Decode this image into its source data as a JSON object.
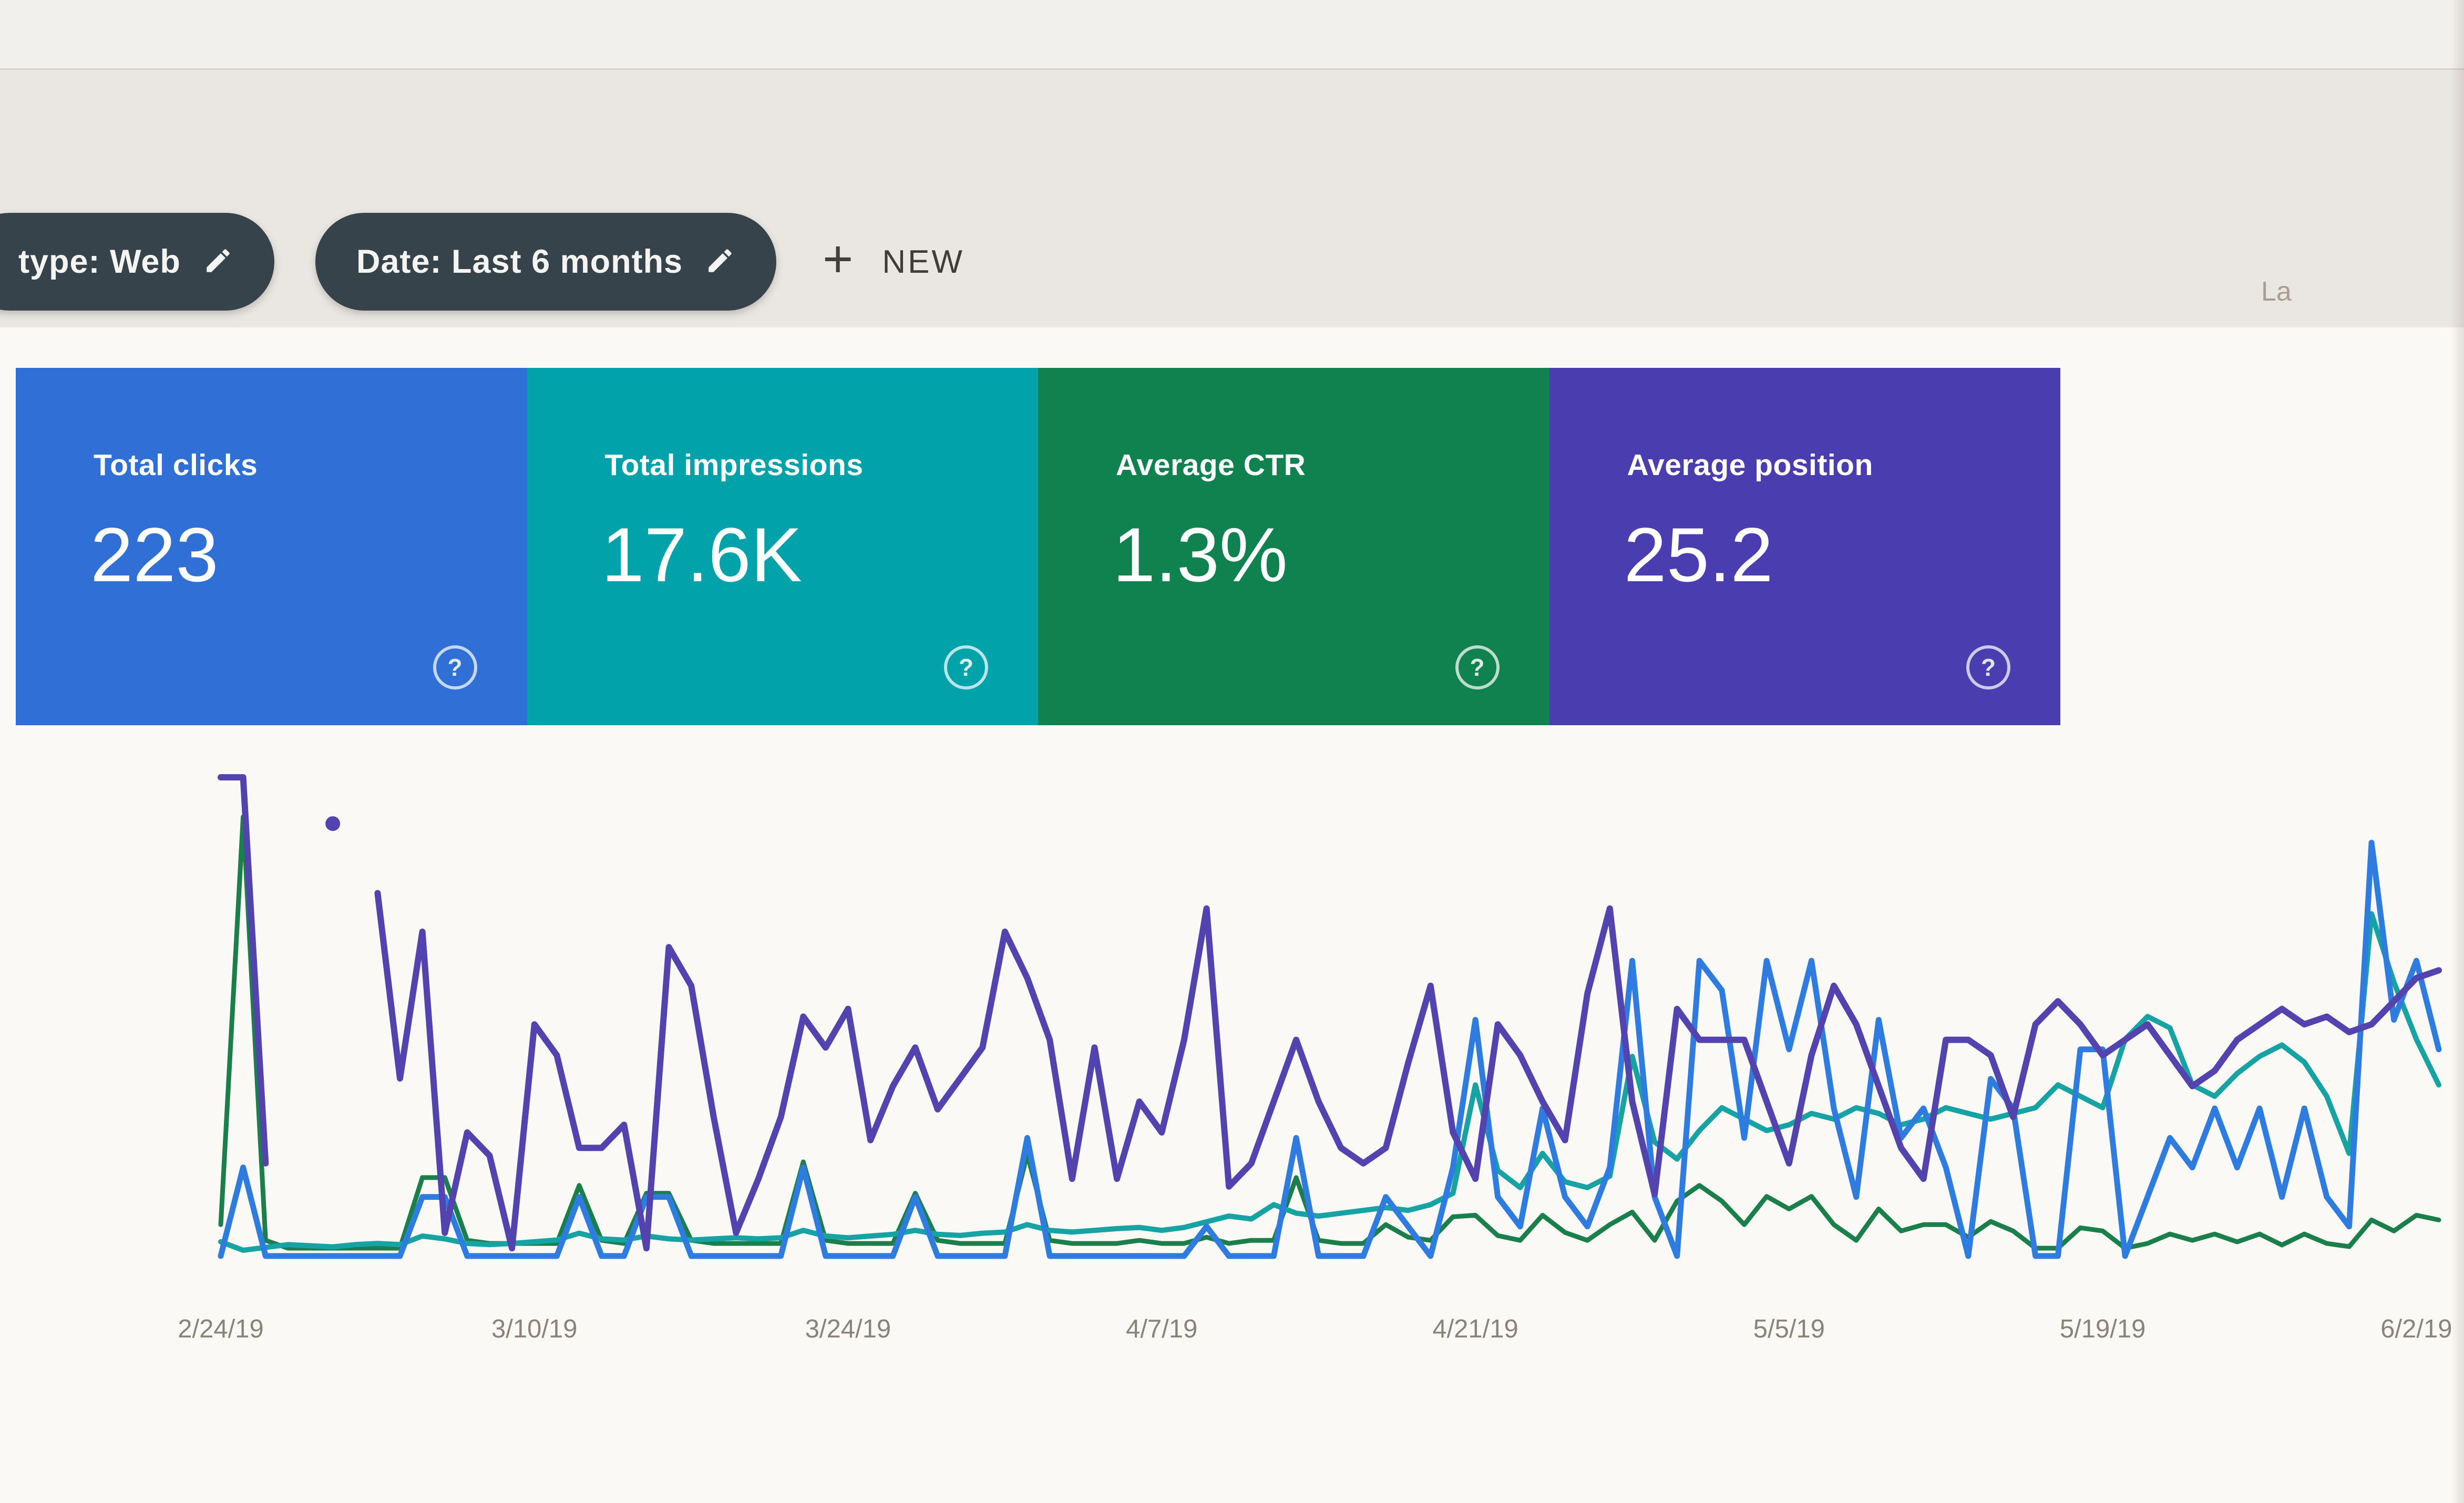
{
  "toolbar": {
    "chips": [
      {
        "label": "type: Web"
      },
      {
        "label": "Date: Last 6 months"
      }
    ],
    "new_button": {
      "plus": "+",
      "label": "NEW"
    },
    "top_right_truncated": "La"
  },
  "summary_cards": [
    {
      "id": "clicks",
      "label": "Total clicks",
      "value": "223",
      "color": "#2f6fd6",
      "help_icon": "?"
    },
    {
      "id": "impressions",
      "label": "Total impressions",
      "value": "17.6K",
      "color": "#01a2aa",
      "help_icon": "?"
    },
    {
      "id": "ctr",
      "label": "Average CTR",
      "value": "1.3%",
      "color": "#10824f",
      "help_icon": "?"
    },
    {
      "id": "position",
      "label": "Average position",
      "value": "25.2",
      "color": "#4a3db0",
      "help_icon": "?"
    }
  ],
  "chart_data": {
    "type": "line",
    "title": "",
    "xlabel": "",
    "ylabel": "",
    "grid": false,
    "y_axis_visible": false,
    "legend": "summary cards act as legend",
    "num_points": 100,
    "x_start_date": "2/24/19",
    "x_tick_labels": [
      "2/24/19",
      "3/10/19",
      "3/24/19",
      "4/7/19",
      "4/21/19",
      "5/5/19",
      "5/19/19",
      "6/2/19"
    ],
    "tick_indices": [
      0,
      14,
      28,
      42,
      56,
      70,
      84,
      98
    ],
    "series": [
      {
        "id": "clicks",
        "name": "Clicks",
        "unit": "clicks/day",
        "color": "#2e7ce0",
        "plot_max": 17,
        "values": [
          0,
          3,
          0,
          0,
          0,
          0,
          0,
          0,
          0,
          2,
          2,
          0,
          0,
          0,
          0,
          0,
          2,
          0,
          0,
          2,
          2,
          0,
          0,
          0,
          0,
          0,
          3,
          0,
          0,
          0,
          0,
          2,
          0,
          0,
          0,
          0,
          4,
          0,
          0,
          0,
          0,
          0,
          0,
          0,
          1,
          0,
          0,
          0,
          4,
          0,
          0,
          0,
          2,
          1,
          0,
          3,
          8,
          2,
          1,
          5,
          2,
          1,
          3,
          10,
          2,
          0,
          10,
          9,
          4,
          10,
          7,
          10,
          5,
          2,
          8,
          4,
          5,
          3,
          0,
          6,
          5,
          0,
          0,
          7,
          7,
          0,
          2,
          4,
          3,
          5,
          3,
          5,
          2,
          5,
          2,
          1,
          14,
          8,
          10,
          7
        ]
      },
      {
        "id": "impressions",
        "name": "Impressions",
        "unit": "impressions/day",
        "color": "#17a3a3",
        "plot_max": 880,
        "values": [
          25,
          10,
          15,
          20,
          18,
          16,
          20,
          22,
          20,
          35,
          30,
          22,
          20,
          22,
          25,
          28,
          40,
          30,
          28,
          35,
          30,
          28,
          30,
          32,
          30,
          32,
          45,
          35,
          32,
          35,
          38,
          45,
          38,
          36,
          40,
          42,
          55,
          45,
          42,
          45,
          48,
          50,
          45,
          50,
          60,
          70,
          65,
          90,
          75,
          70,
          75,
          80,
          85,
          80,
          90,
          110,
          300,
          150,
          120,
          180,
          130,
          120,
          140,
          350,
          200,
          170,
          220,
          260,
          240,
          220,
          230,
          250,
          240,
          260,
          250,
          230,
          240,
          260,
          250,
          240,
          250,
          260,
          300,
          280,
          260,
          380,
          420,
          400,
          300,
          280,
          320,
          350,
          370,
          340,
          280,
          180,
          600,
          480,
          380,
          300
        ]
      },
      {
        "id": "ctr",
        "name": "CTR",
        "unit": "%",
        "color": "#1a7f4b",
        "plot_max": 32,
        "values": [
          2,
          28,
          1,
          0.5,
          0.5,
          0.5,
          0.5,
          0.5,
          0.5,
          5,
          5,
          1,
          0.8,
          0.8,
          0.8,
          0.8,
          4.5,
          1,
          0.8,
          4,
          4,
          1,
          0.8,
          0.8,
          0.8,
          0.8,
          6,
          1,
          0.8,
          0.8,
          0.8,
          4,
          1,
          0.8,
          0.8,
          0.8,
          6.5,
          1,
          0.8,
          0.8,
          0.8,
          1,
          0.8,
          0.8,
          1.2,
          0.8,
          1,
          1,
          5,
          1,
          0.8,
          0.8,
          2,
          1.2,
          1,
          2.5,
          2.6,
          1.3,
          1,
          2.6,
          1.5,
          1,
          2,
          2.8,
          1,
          3.5,
          4.5,
          3.5,
          2,
          3.8,
          3,
          3.8,
          2,
          1,
          3,
          1.6,
          2,
          2,
          1.2,
          2.2,
          1.6,
          0.5,
          0.5,
          1.8,
          1.6,
          0.5,
          0.8,
          1.4,
          1,
          1.4,
          0.9,
          1.4,
          0.7,
          1.4,
          0.8,
          0.6,
          2.3,
          1.6,
          2.6,
          2.3
        ]
      },
      {
        "id": "position",
        "name": "Position",
        "unit": "avg position",
        "color": "#5243ae",
        "plot_max": 65,
        "values": [
          62,
          62,
          12,
          null,
          null,
          56,
          null,
          47,
          23,
          42,
          3,
          16,
          13,
          1,
          30,
          26,
          14,
          14,
          17,
          1,
          40,
          35,
          18,
          3,
          10,
          18,
          31,
          27,
          32,
          15,
          22,
          27,
          19,
          23,
          27,
          42,
          36,
          28,
          10,
          27,
          10,
          20,
          16,
          28,
          45,
          9,
          12,
          20,
          28,
          20,
          14,
          12,
          14,
          25,
          35,
          16,
          10,
          30,
          26,
          20,
          15,
          34,
          45,
          20,
          8,
          32,
          28,
          28,
          28,
          20,
          12,
          26,
          35,
          30,
          22,
          14,
          10,
          28,
          28,
          26,
          18,
          30,
          33,
          30,
          26,
          28,
          30,
          26,
          22,
          24,
          28,
          30,
          32,
          30,
          31,
          29,
          30,
          33,
          36,
          37
        ]
      }
    ]
  }
}
